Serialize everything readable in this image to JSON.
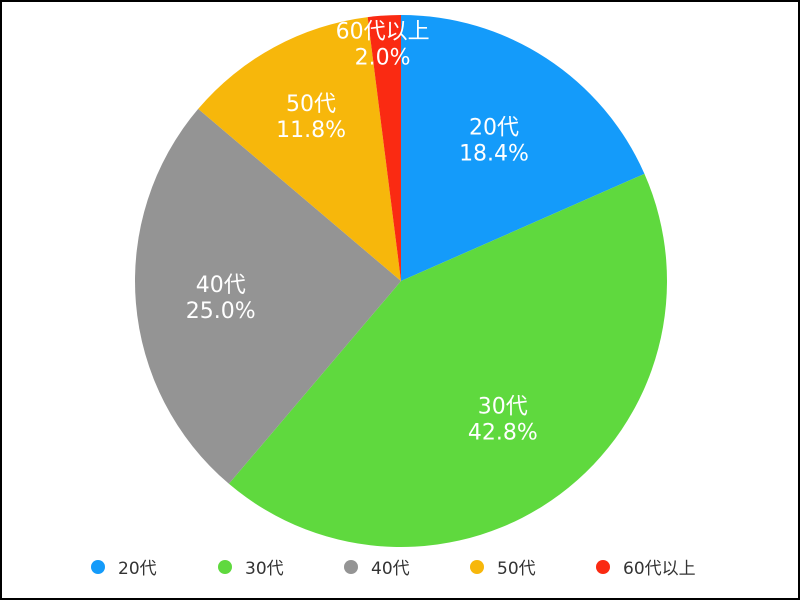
{
  "chart_data": {
    "type": "pie",
    "title": "",
    "start_angle": "top",
    "direction": "clockwise",
    "legend_position": "bottom",
    "slices": [
      {
        "label": "20代",
        "value": 18.4,
        "percent_label": "18.4%",
        "color": "#149BFA"
      },
      {
        "label": "30代",
        "value": 42.8,
        "percent_label": "42.8%",
        "color": "#5FD93E"
      },
      {
        "label": "40代",
        "value": 25.0,
        "percent_label": "25.0%",
        "color": "#949494"
      },
      {
        "label": "50代",
        "value": 11.8,
        "percent_label": "11.8%",
        "color": "#F7B70B"
      },
      {
        "label": "60代以上",
        "value": 2.0,
        "percent_label": "2.0%",
        "color": "#FA2A12"
      }
    ]
  }
}
